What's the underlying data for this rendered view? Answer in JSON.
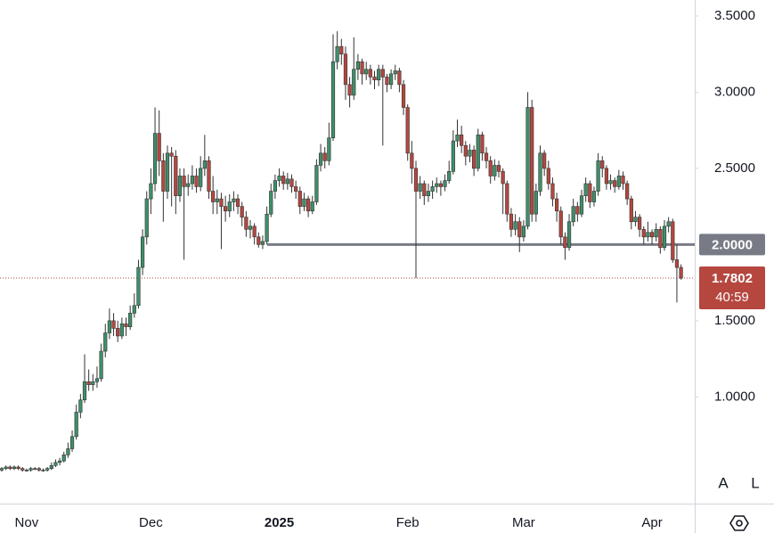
{
  "chart_data": {
    "type": "candlestick",
    "up_color": "#3f8f6a",
    "down_color": "#b5473f",
    "ylim": [
      0.3,
      3.605
    ],
    "yticks": [
      {
        "value": 3.5,
        "label": "3.5000"
      },
      {
        "value": 3.0,
        "label": "3.0000"
      },
      {
        "value": 2.5,
        "label": "2.5000"
      },
      {
        "value": 1.5,
        "label": "1.5000"
      },
      {
        "value": 1.0,
        "label": "1.0000"
      }
    ],
    "grid": false,
    "hline": {
      "value": 2,
      "label": "2.0000",
      "color": "#787b86"
    },
    "countdown": "40:59",
    "buttons": [
      "A",
      "L"
    ],
    "categories": [
      null,
      null,
      null,
      null,
      null,
      null,
      "Nov",
      null,
      null,
      null,
      null,
      null,
      null,
      null,
      null,
      null,
      null,
      null,
      null,
      null,
      null,
      null,
      null,
      null,
      null,
      null,
      null,
      null,
      null,
      null,
      null,
      null,
      null,
      null,
      null,
      null,
      "Dec",
      null,
      null,
      null,
      null,
      null,
      null,
      null,
      null,
      null,
      null,
      null,
      null,
      null,
      null,
      null,
      null,
      null,
      null,
      null,
      null,
      null,
      null,
      null,
      null,
      null,
      null,
      null,
      null,
      null,
      null,
      "2025",
      null,
      null,
      null,
      null,
      null,
      null,
      null,
      null,
      null,
      null,
      null,
      null,
      null,
      null,
      null,
      null,
      null,
      null,
      null,
      null,
      null,
      null,
      null,
      null,
      null,
      null,
      null,
      null,
      null,
      null,
      "Feb",
      null,
      null,
      null,
      null,
      null,
      null,
      null,
      null,
      null,
      null,
      null,
      null,
      null,
      null,
      null,
      null,
      null,
      null,
      null,
      null,
      null,
      null,
      null,
      null,
      null,
      null,
      null,
      "Mar",
      null,
      null,
      null,
      null,
      null,
      null,
      null,
      null,
      null,
      null,
      null,
      null,
      null,
      null,
      null,
      null,
      null,
      null,
      null,
      null,
      null,
      null,
      null,
      null,
      null,
      null,
      null,
      null,
      null,
      null,
      "Apr",
      null,
      null,
      null,
      null,
      null,
      null,
      null
    ],
    "candles": [
      [
        0.52,
        0.54,
        0.51,
        0.53
      ],
      [
        0.53,
        0.55,
        0.52,
        0.54
      ],
      [
        0.54,
        0.55,
        0.52,
        0.53
      ],
      [
        0.53,
        0.55,
        0.52,
        0.54
      ],
      [
        0.54,
        0.55,
        0.52,
        0.53
      ],
      [
        0.53,
        0.54,
        0.51,
        0.52
      ],
      [
        0.52,
        0.53,
        0.51,
        0.52
      ],
      [
        0.52,
        0.54,
        0.51,
        0.53
      ],
      [
        0.53,
        0.54,
        0.52,
        0.53
      ],
      [
        0.53,
        0.54,
        0.51,
        0.52
      ],
      [
        0.52,
        0.53,
        0.51,
        0.52
      ],
      [
        0.52,
        0.54,
        0.51,
        0.53
      ],
      [
        0.53,
        0.57,
        0.52,
        0.55
      ],
      [
        0.55,
        0.59,
        0.54,
        0.57
      ],
      [
        0.57,
        0.6,
        0.55,
        0.58
      ],
      [
        0.58,
        0.64,
        0.57,
        0.62
      ],
      [
        0.62,
        0.7,
        0.6,
        0.66
      ],
      [
        0.66,
        0.78,
        0.64,
        0.74
      ],
      [
        0.74,
        0.95,
        0.72,
        0.9
      ],
      [
        0.9,
        1.02,
        0.86,
        0.98
      ],
      [
        0.98,
        1.28,
        0.96,
        1.1
      ],
      [
        1.1,
        1.18,
        1.04,
        1.08
      ],
      [
        1.08,
        1.15,
        1.04,
        1.1
      ],
      [
        1.1,
        1.2,
        1.06,
        1.12
      ],
      [
        1.12,
        1.35,
        1.1,
        1.3
      ],
      [
        1.3,
        1.48,
        1.26,
        1.42
      ],
      [
        1.42,
        1.58,
        1.38,
        1.5
      ],
      [
        1.5,
        1.55,
        1.4,
        1.45
      ],
      [
        1.45,
        1.5,
        1.36,
        1.4
      ],
      [
        1.4,
        1.52,
        1.38,
        1.48
      ],
      [
        1.48,
        1.52,
        1.4,
        1.46
      ],
      [
        1.46,
        1.6,
        1.44,
        1.55
      ],
      [
        1.55,
        1.68,
        1.52,
        1.6
      ],
      [
        1.6,
        1.9,
        1.58,
        1.85
      ],
      [
        1.85,
        2.1,
        1.8,
        2.05
      ],
      [
        2.05,
        2.35,
        2.0,
        2.3
      ],
      [
        2.3,
        2.5,
        2.2,
        2.4
      ],
      [
        2.4,
        2.9,
        2.35,
        2.73
      ],
      [
        2.73,
        2.88,
        2.45,
        2.55
      ],
      [
        2.55,
        2.6,
        2.15,
        2.35
      ],
      [
        2.35,
        2.65,
        2.3,
        2.6
      ],
      [
        2.6,
        2.64,
        2.25,
        2.58
      ],
      [
        2.58,
        2.62,
        2.2,
        2.32
      ],
      [
        2.32,
        2.5,
        2.28,
        2.45
      ],
      [
        2.45,
        2.5,
        1.9,
        2.38
      ],
      [
        2.38,
        2.46,
        2.32,
        2.4
      ],
      [
        2.4,
        2.52,
        2.36,
        2.45
      ],
      [
        2.45,
        2.5,
        2.34,
        2.38
      ],
      [
        2.38,
        2.58,
        2.35,
        2.5
      ],
      [
        2.5,
        2.72,
        2.45,
        2.55
      ],
      [
        2.55,
        2.58,
        2.3,
        2.35
      ],
      [
        2.35,
        2.45,
        2.2,
        2.28
      ],
      [
        2.28,
        2.36,
        2.2,
        2.3
      ],
      [
        2.3,
        2.34,
        1.97,
        2.25
      ],
      [
        2.25,
        2.32,
        2.15,
        2.22
      ],
      [
        2.22,
        2.33,
        2.18,
        2.28
      ],
      [
        2.28,
        2.35,
        2.22,
        2.3
      ],
      [
        2.3,
        2.33,
        2.2,
        2.25
      ],
      [
        2.25,
        2.28,
        2.12,
        2.18
      ],
      [
        2.18,
        2.22,
        2.05,
        2.1
      ],
      [
        2.1,
        2.16,
        2.04,
        2.12
      ],
      [
        2.12,
        2.14,
        2.0,
        2.05
      ],
      [
        2.05,
        2.08,
        1.98,
        2.0
      ],
      [
        2.0,
        2.06,
        1.97,
        2.02
      ],
      [
        2.02,
        2.25,
        2.0,
        2.2
      ],
      [
        2.2,
        2.4,
        2.18,
        2.35
      ],
      [
        2.35,
        2.46,
        2.3,
        2.42
      ],
      [
        2.42,
        2.5,
        2.38,
        2.45
      ],
      [
        2.45,
        2.48,
        2.36,
        2.4
      ],
      [
        2.4,
        2.47,
        2.36,
        2.43
      ],
      [
        2.43,
        2.46,
        2.34,
        2.38
      ],
      [
        2.38,
        2.42,
        2.3,
        2.35
      ],
      [
        2.35,
        2.38,
        2.2,
        2.25
      ],
      [
        2.25,
        2.34,
        2.22,
        2.3
      ],
      [
        2.3,
        2.32,
        2.18,
        2.22
      ],
      [
        2.22,
        2.32,
        2.2,
        2.28
      ],
      [
        2.28,
        2.56,
        2.26,
        2.52
      ],
      [
        2.52,
        2.66,
        2.48,
        2.6
      ],
      [
        2.6,
        2.64,
        2.5,
        2.55
      ],
      [
        2.55,
        2.8,
        2.52,
        2.7
      ],
      [
        2.7,
        3.38,
        2.68,
        3.2
      ],
      [
        3.2,
        3.4,
        3.15,
        3.3
      ],
      [
        3.3,
        3.35,
        3.18,
        3.25
      ],
      [
        3.25,
        3.3,
        2.95,
        3.05
      ],
      [
        3.05,
        3.1,
        2.9,
        2.98
      ],
      [
        2.98,
        3.36,
        2.95,
        3.15
      ],
      [
        3.15,
        3.25,
        3.08,
        3.2
      ],
      [
        3.2,
        3.22,
        3.05,
        3.12
      ],
      [
        3.12,
        3.2,
        3.08,
        3.15
      ],
      [
        3.15,
        3.18,
        3.05,
        3.1
      ],
      [
        3.1,
        3.14,
        3.02,
        3.08
      ],
      [
        3.08,
        3.18,
        3.04,
        3.15
      ],
      [
        3.15,
        3.18,
        2.65,
        3.1
      ],
      [
        3.1,
        3.12,
        3.0,
        3.05
      ],
      [
        3.05,
        3.15,
        3.02,
        3.12
      ],
      [
        3.12,
        3.18,
        3.08,
        3.14
      ],
      [
        3.14,
        3.16,
        3.0,
        3.05
      ],
      [
        3.05,
        3.08,
        2.85,
        2.9
      ],
      [
        2.9,
        2.92,
        2.55,
        2.6
      ],
      [
        2.6,
        2.68,
        2.4,
        2.5
      ],
      [
        2.5,
        2.55,
        1.78,
        2.35
      ],
      [
        2.35,
        2.45,
        2.3,
        2.4
      ],
      [
        2.4,
        2.42,
        2.26,
        2.32
      ],
      [
        2.32,
        2.4,
        2.28,
        2.35
      ],
      [
        2.35,
        2.42,
        2.3,
        2.38
      ],
      [
        2.38,
        2.44,
        2.34,
        2.4
      ],
      [
        2.4,
        2.42,
        2.32,
        2.38
      ],
      [
        2.38,
        2.46,
        2.35,
        2.42
      ],
      [
        2.42,
        2.55,
        2.4,
        2.48
      ],
      [
        2.48,
        2.75,
        2.46,
        2.68
      ],
      [
        2.68,
        2.82,
        2.64,
        2.72
      ],
      [
        2.72,
        2.78,
        2.6,
        2.65
      ],
      [
        2.65,
        2.68,
        2.52,
        2.58
      ],
      [
        2.58,
        2.66,
        2.54,
        2.62
      ],
      [
        2.62,
        2.65,
        2.45,
        2.5
      ],
      [
        2.5,
        2.76,
        2.48,
        2.72
      ],
      [
        2.72,
        2.74,
        2.55,
        2.6
      ],
      [
        2.6,
        2.64,
        2.5,
        2.55
      ],
      [
        2.55,
        2.58,
        2.4,
        2.45
      ],
      [
        2.45,
        2.56,
        2.42,
        2.52
      ],
      [
        2.52,
        2.55,
        2.44,
        2.48
      ],
      [
        2.48,
        2.5,
        2.2,
        2.4
      ],
      [
        2.4,
        2.42,
        2.15,
        2.2
      ],
      [
        2.2,
        2.24,
        2.05,
        2.1
      ],
      [
        2.1,
        2.2,
        2.06,
        2.15
      ],
      [
        2.15,
        2.18,
        1.95,
        2.05
      ],
      [
        2.05,
        2.16,
        2.02,
        2.12
      ],
      [
        2.12,
        3.0,
        2.1,
        2.9
      ],
      [
        2.9,
        2.95,
        2.15,
        2.2
      ],
      [
        2.2,
        2.4,
        2.15,
        2.35
      ],
      [
        2.35,
        2.65,
        2.32,
        2.6
      ],
      [
        2.6,
        2.62,
        2.45,
        2.5
      ],
      [
        2.5,
        2.55,
        2.36,
        2.4
      ],
      [
        2.4,
        2.44,
        2.25,
        2.3
      ],
      [
        2.3,
        2.34,
        2.15,
        2.22
      ],
      [
        2.22,
        2.25,
        2.0,
        2.05
      ],
      [
        2.05,
        2.08,
        1.9,
        1.98
      ],
      [
        1.98,
        2.2,
        1.96,
        2.15
      ],
      [
        2.15,
        2.3,
        2.12,
        2.25
      ],
      [
        2.25,
        2.28,
        2.15,
        2.2
      ],
      [
        2.2,
        2.36,
        2.18,
        2.32
      ],
      [
        2.32,
        2.44,
        2.28,
        2.4
      ],
      [
        2.4,
        2.42,
        2.24,
        2.28
      ],
      [
        2.28,
        2.38,
        2.25,
        2.35
      ],
      [
        2.35,
        2.6,
        2.32,
        2.55
      ],
      [
        2.55,
        2.58,
        2.44,
        2.5
      ],
      [
        2.5,
        2.52,
        2.36,
        2.4
      ],
      [
        2.4,
        2.46,
        2.36,
        2.42
      ],
      [
        2.42,
        2.44,
        2.34,
        2.38
      ],
      [
        2.38,
        2.49,
        2.36,
        2.45
      ],
      [
        2.45,
        2.48,
        2.36,
        2.4
      ],
      [
        2.4,
        2.42,
        2.26,
        2.3
      ],
      [
        2.3,
        2.32,
        2.1,
        2.15
      ],
      [
        2.15,
        2.22,
        2.12,
        2.18
      ],
      [
        2.18,
        2.2,
        2.05,
        2.1
      ],
      [
        2.1,
        2.12,
        2.0,
        2.05
      ],
      [
        2.05,
        2.15,
        2.02,
        2.08
      ],
      [
        2.08,
        2.1,
        2.0,
        2.05
      ],
      [
        2.05,
        2.14,
        2.02,
        2.1
      ],
      [
        2.1,
        2.12,
        1.94,
        1.98
      ],
      [
        1.98,
        2.16,
        1.96,
        2.12
      ],
      [
        2.12,
        2.18,
        2.08,
        2.15
      ],
      [
        2.15,
        2.17,
        1.88,
        1.9
      ],
      [
        1.9,
        2.0,
        1.62,
        1.85
      ],
      [
        1.85,
        1.87,
        1.77,
        1.7802
      ]
    ]
  }
}
